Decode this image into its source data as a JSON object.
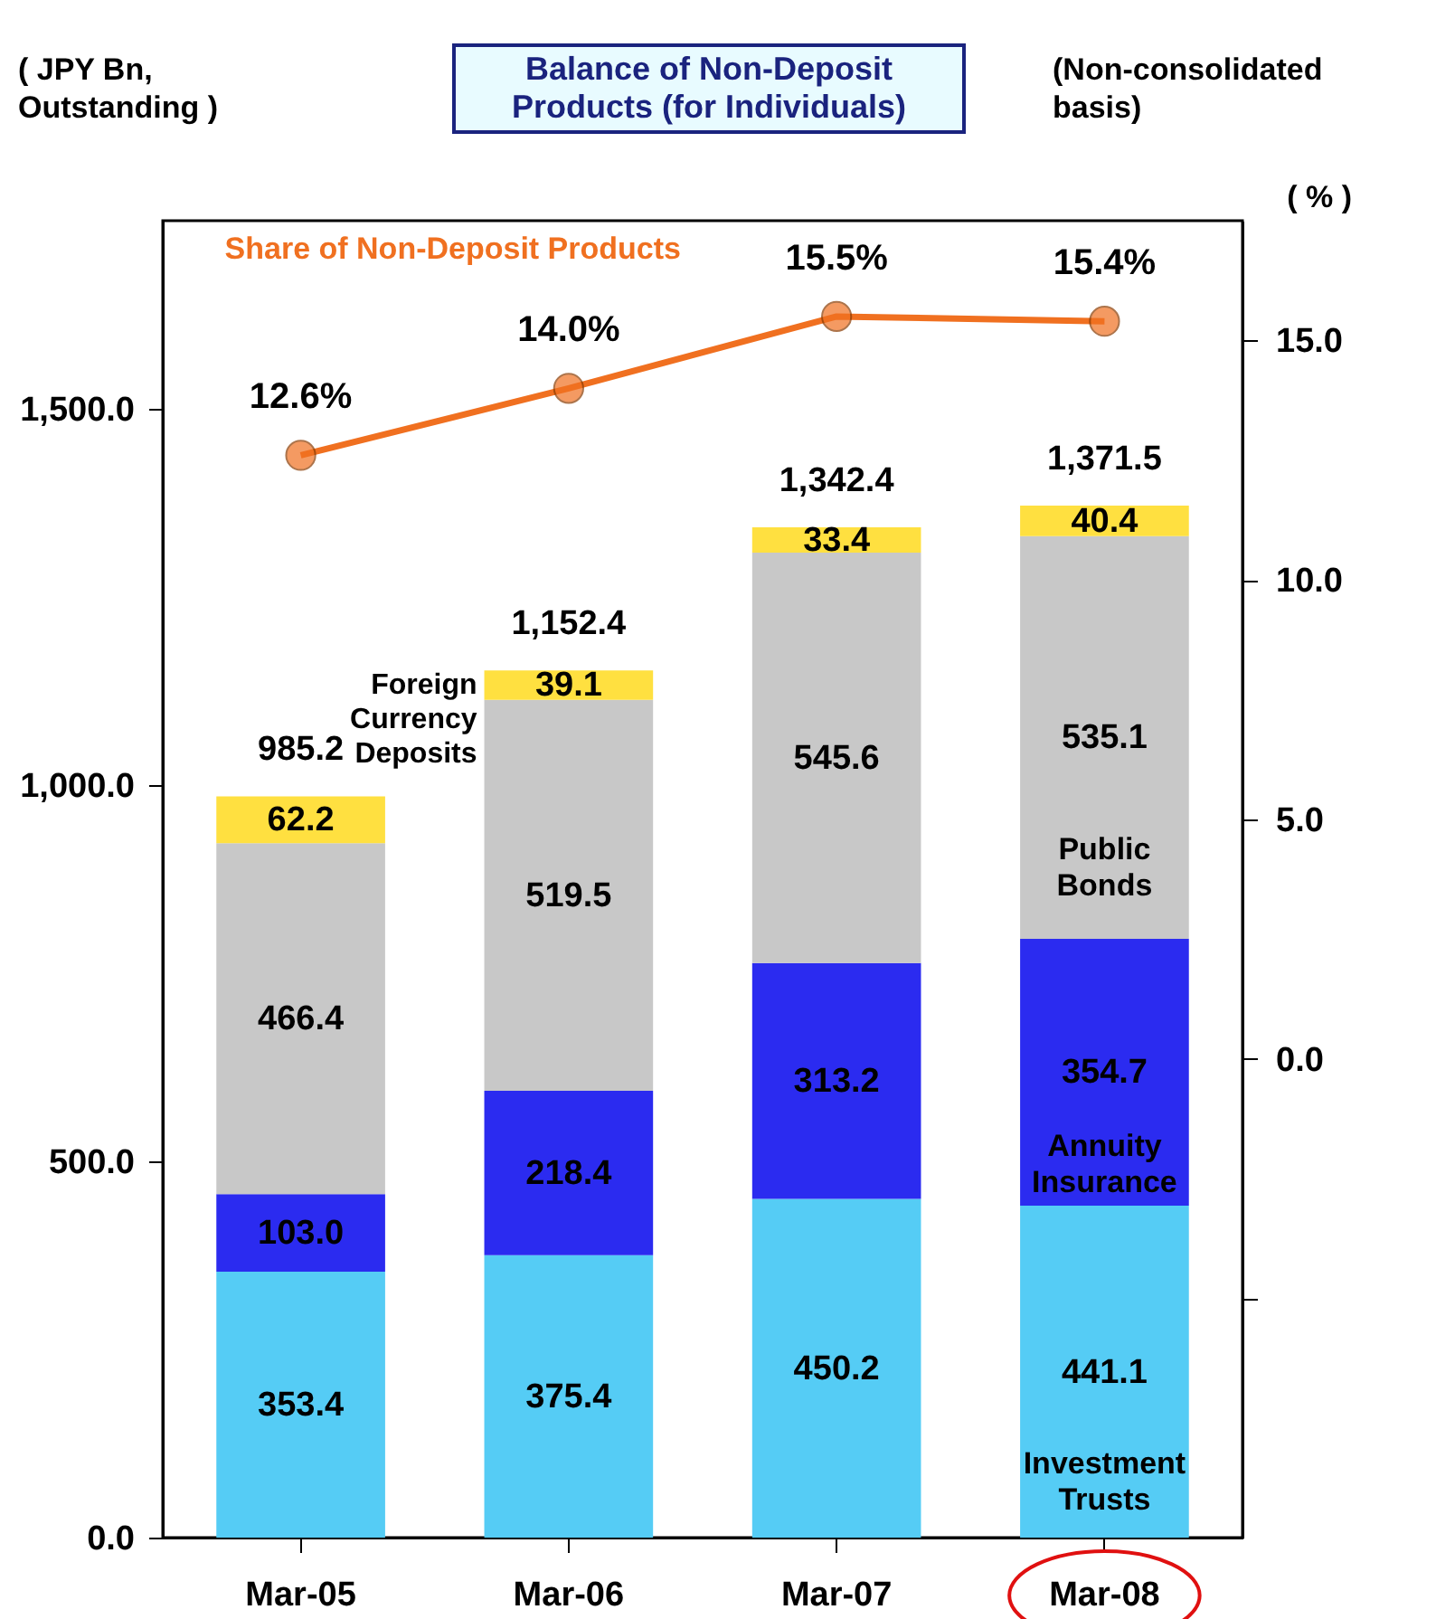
{
  "chart_data": {
    "type": "bar",
    "title": "Balance of Non-Deposit Products (for Individuals)",
    "ylabel": "( JPY Bn, Outstanding )",
    "y2label": "( % )",
    "annotations": [
      "(Non-consolidated basis)"
    ],
    "categories": [
      "Mar-05",
      "Mar-06",
      "Mar-07",
      "Mar-08"
    ],
    "stacked": true,
    "data_labels": true,
    "legend": false,
    "grid": false,
    "marker": "circle",
    "line_style": "solid",
    "totals": [
      "985.2",
      "1,152.4",
      "1,342.4",
      "1,371.5"
    ],
    "series": [
      {
        "name": "Investment Trusts",
        "color": "#55ccf5",
        "values": [
          353.4,
          375.4,
          450.2,
          441.1
        ]
      },
      {
        "name": "Annuity Insurance",
        "color": "#2b2bf0",
        "values": [
          103.0,
          218.4,
          313.2,
          354.7
        ],
        "value_labels": [
          "103.0",
          "218.4",
          "313.2",
          "354.7"
        ]
      },
      {
        "name": "Public Bonds",
        "color": "#c8c8c8",
        "values": [
          466.4,
          519.5,
          545.6,
          535.1
        ]
      },
      {
        "name": "Foreign Currency Deposits",
        "color": "#ffe040",
        "values": [
          62.2,
          39.1,
          33.4,
          40.4
        ]
      },
      {
        "name": "Share of Non-Deposit Products",
        "type": "line",
        "axis": "y2",
        "color": "#f07020",
        "values": [
          12.6,
          14.0,
          15.5,
          15.4
        ],
        "value_labels": [
          "12.6%",
          "14.0%",
          "15.5%",
          "15.4%"
        ]
      }
    ],
    "ylim": [
      0,
      1750
    ],
    "yticks": [
      {
        "value": 0,
        "label": "0.0"
      },
      {
        "value": 500,
        "label": "500.0"
      },
      {
        "value": 1000,
        "label": "1,000.0"
      },
      {
        "value": 1500,
        "label": "1,500.0"
      }
    ],
    "y2lim": [
      -10,
      17.5
    ],
    "y2ticks": [
      {
        "value": -5,
        "label": null
      },
      {
        "value": 0,
        "label": "0.0"
      },
      {
        "value": 5,
        "label": "5.0"
      },
      {
        "value": 10,
        "label": "10.0"
      },
      {
        "value": 15,
        "label": "15.0"
      }
    ]
  }
}
